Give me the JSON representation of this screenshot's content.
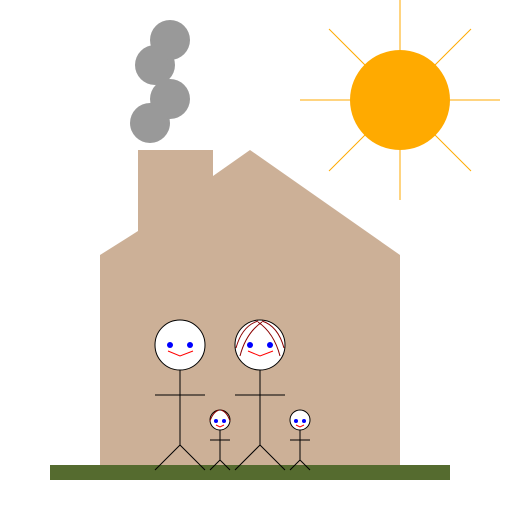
{
  "colors": {
    "background": "#ffffff",
    "house": "#ccb097",
    "smoke": "#999999",
    "sun": "#ffaa00",
    "ground": "#556b2f",
    "stroke": "#000000",
    "eyes": "#0000ff",
    "mouth": "#ff0000",
    "hair": "#8b0000"
  },
  "scene": {
    "sun": {
      "rays": 8
    },
    "smoke_puffs": 4,
    "family": [
      {
        "role": "adult",
        "hair": false
      },
      {
        "role": "adult",
        "hair": true
      },
      {
        "role": "child",
        "hair": true
      },
      {
        "role": "child",
        "hair": false
      }
    ]
  }
}
